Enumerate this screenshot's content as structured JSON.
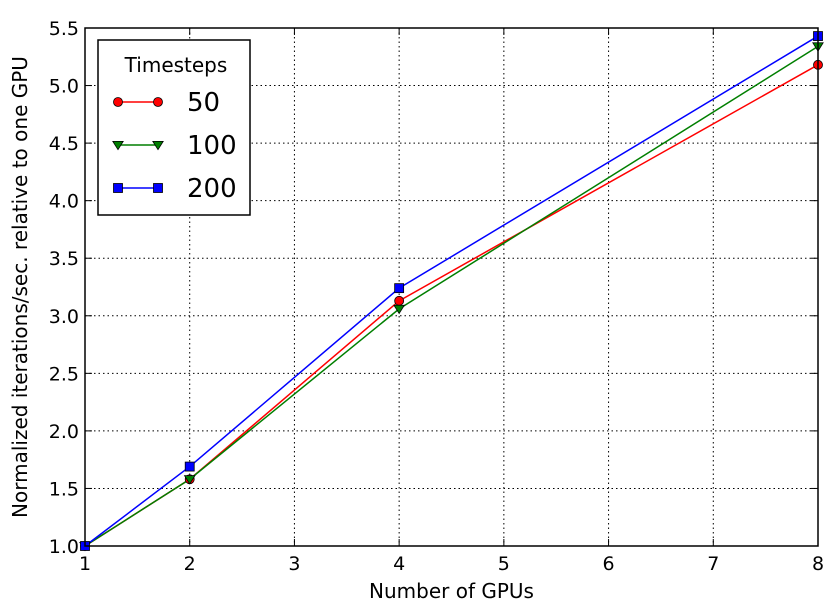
{
  "chart_data": {
    "type": "line",
    "title": "",
    "xlabel": "Number of GPUs",
    "ylabel": "Normalized iterations/sec. relative to one GPU",
    "xlim": [
      1,
      8
    ],
    "ylim": [
      1.0,
      5.5
    ],
    "xticks": [
      "1",
      "2",
      "3",
      "4",
      "5",
      "6",
      "7",
      "8"
    ],
    "yticks": [
      "1.0",
      "1.5",
      "2.0",
      "2.5",
      "3.0",
      "3.5",
      "4.0",
      "4.5",
      "5.0",
      "5.5"
    ],
    "grid": true,
    "legend": {
      "title": "Timesteps",
      "placement": "top-left"
    },
    "x": [
      1,
      2,
      4,
      8
    ],
    "series": [
      {
        "name": "50",
        "values": [
          1.0,
          1.58,
          3.13,
          5.18
        ],
        "color": "#ff0000",
        "marker": "circle"
      },
      {
        "name": "100",
        "values": [
          1.0,
          1.58,
          3.06,
          5.34
        ],
        "color": "#007f00",
        "marker": "triangle-down"
      },
      {
        "name": "200",
        "values": [
          1.0,
          1.69,
          3.24,
          5.43
        ],
        "color": "#0000ff",
        "marker": "square"
      }
    ]
  }
}
